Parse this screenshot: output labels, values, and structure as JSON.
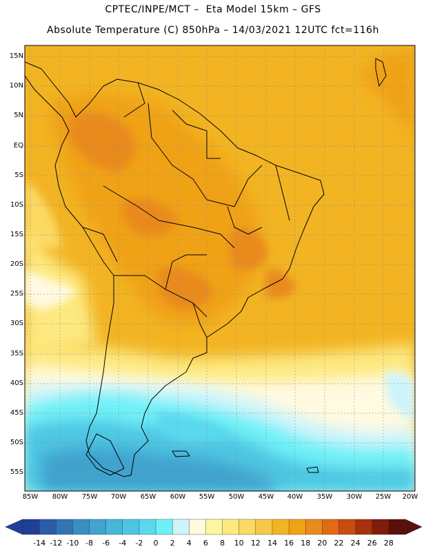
{
  "header": {
    "line1": "CPTEC/INPE/MCT –  Eta Model 15km – GFS",
    "line2": "Absolute Temperature (C) 850hPa – 14/03/2021 12UTC fct=116h"
  },
  "map": {
    "lat_labels": [
      "15N",
      "10N",
      "5N",
      "EQ",
      "5S",
      "10S",
      "15S",
      "20S",
      "25S",
      "30S",
      "35S",
      "40S",
      "45S",
      "50S",
      "55S"
    ],
    "lon_labels": [
      "85W",
      "80W",
      "75W",
      "70W",
      "65W",
      "60W",
      "55W",
      "50W",
      "45W",
      "40W",
      "35W",
      "30W",
      "25W",
      "20W"
    ],
    "lat_range": [
      -58,
      17
    ],
    "lon_range": [
      -86,
      -19
    ]
  },
  "colorbar": {
    "ticks": [
      "-14",
      "-12",
      "-10",
      "-8",
      "-6",
      "-4",
      "-2",
      "0",
      "2",
      "4",
      "6",
      "8",
      "10",
      "12",
      "14",
      "16",
      "18",
      "20",
      "22",
      "24",
      "26",
      "28"
    ],
    "colors": [
      "#1f3f99",
      "#2a5ca8",
      "#3175b3",
      "#3a8ec0",
      "#41a3ce",
      "#47b6d8",
      "#4ec6e2",
      "#5ad8ee",
      "#6ff0f7",
      "#cdf4fb",
      "#fffae0",
      "#fdf6a0",
      "#fde980",
      "#fcd964",
      "#f5c84a",
      "#f2b423",
      "#f0a212",
      "#e98a1c",
      "#e26a12",
      "#c84c10",
      "#a8300c",
      "#7f1c0c",
      "#5a0f0a"
    ]
  }
}
